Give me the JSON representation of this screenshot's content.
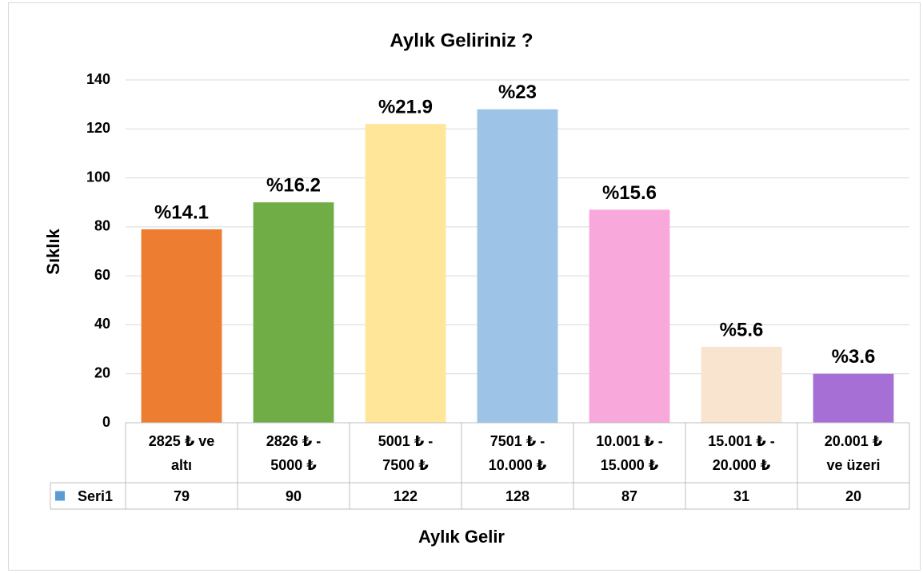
{
  "chart_data": {
    "type": "bar",
    "title": "Aylık Geliriniz ?",
    "x_label": "Aylık Gelir",
    "y_label": "Sıklık",
    "categories": [
      "2825 ₺ ve\naltı",
      "2826 ₺ -\n5000 ₺",
      "5001 ₺ -\n7500 ₺",
      "7501 ₺ -\n10.000 ₺",
      "10.001 ₺ -\n15.000 ₺",
      "15.001 ₺ -\n20.000 ₺",
      "20.001 ₺\nve üzeri"
    ],
    "series": [
      {
        "name": "Seri1",
        "color": "#5b9bd5",
        "colors": [
          "#ed7d31",
          "#70ad47",
          "#ffe699",
          "#9dc3e6",
          "#f9a8dc",
          "#f8e4cf",
          "#a66fd6"
        ],
        "values": [
          79,
          90,
          122,
          128,
          87,
          31,
          20
        ],
        "value_labels": [
          "%14.1",
          "%16.2",
          "%21.9",
          "%23",
          "%15.6",
          "%5.6",
          "%3.6"
        ]
      }
    ],
    "ylim": [
      0,
      140
    ],
    "yticks": [
      0,
      20,
      40,
      60,
      80,
      100,
      120,
      140
    ],
    "grid": true
  }
}
